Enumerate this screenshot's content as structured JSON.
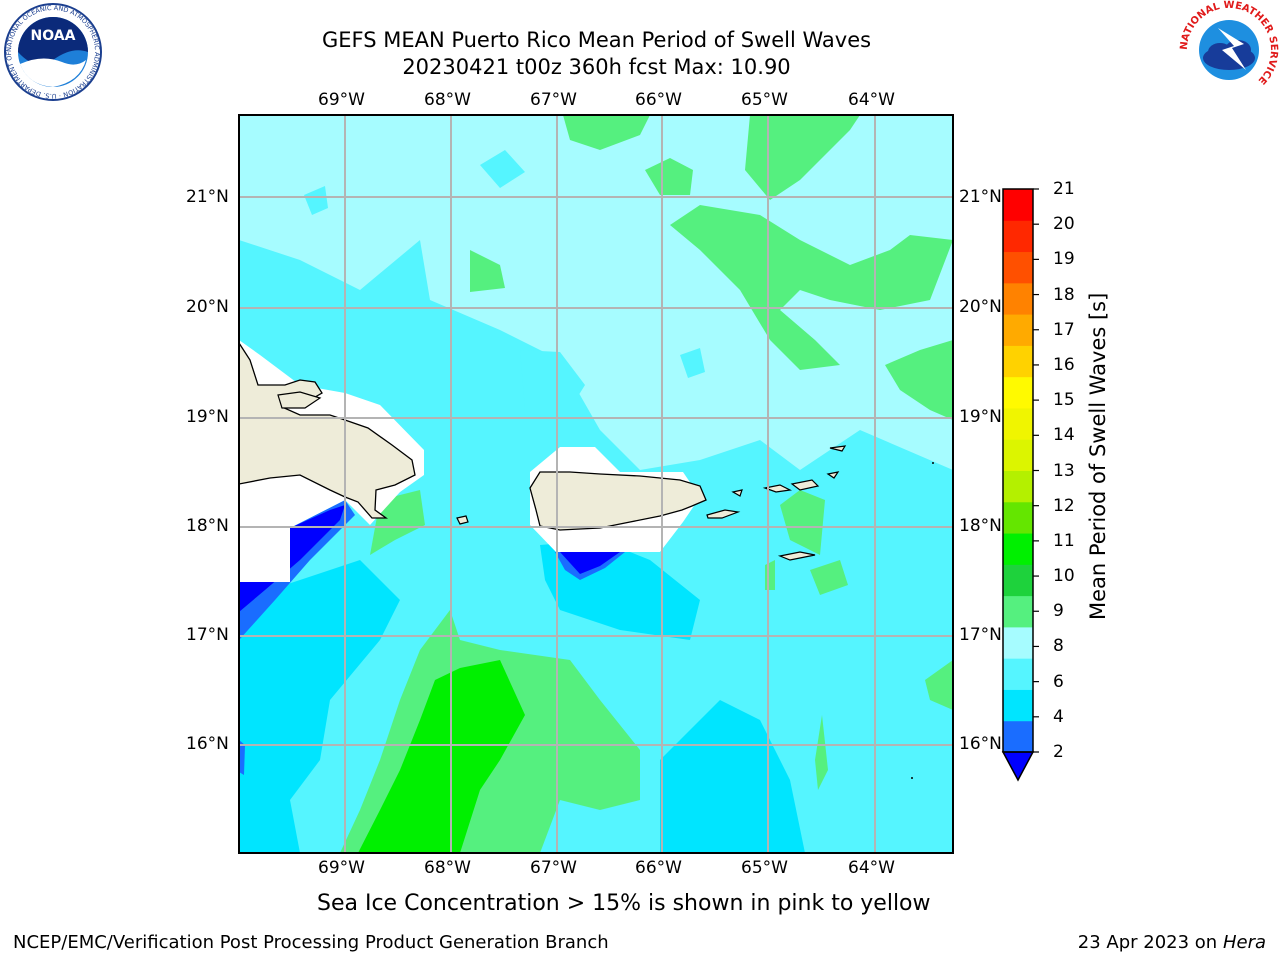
{
  "header": {
    "title_line1": "GEFS MEAN Puerto Rico Mean Period of Swell Waves",
    "title_line2": "20230421 t00z 360h fcst   Max: 10.90"
  },
  "logos": {
    "left_name": "NOAA",
    "left_ring_text": "NATIONAL OCEANIC AND ATMOSPHERIC ADMINISTRATION · U.S. DEPARTMENT OF COMMERCE",
    "right_ring_text": "NATIONAL WEATHER SERVICE"
  },
  "map": {
    "lon_labels": [
      "69°W",
      "68°W",
      "67°W",
      "66°W",
      "65°W",
      "64°W"
    ],
    "lat_labels": [
      "21°N",
      "20°N",
      "19°N",
      "18°N",
      "17°N",
      "16°N"
    ],
    "land_color": "#eeecd9",
    "grid_color": "#b4b4b4"
  },
  "colorbar": {
    "label": "Mean Period of Swell Waves [s]",
    "ticks": [
      "21",
      "20",
      "19",
      "18",
      "17",
      "16",
      "15",
      "14",
      "13",
      "12",
      "11",
      "10",
      "9",
      "8",
      "6",
      "4",
      "2"
    ],
    "colors_bottom_to_top": [
      "#1a6dff",
      "#00e5ff",
      "#55f5ff",
      "#a6fcff",
      "#55f07f",
      "#1ed23c",
      "#00f000",
      "#64e600",
      "#b4f000",
      "#dcf500",
      "#f0f500",
      "#fffa00",
      "#ffd200",
      "#ffaa00",
      "#ff8200",
      "#ff5000",
      "#ff2800",
      "#ff0000"
    ],
    "underflow_color": "#0000ff"
  },
  "note": "Sea Ice Concentration > 15% is shown in pink to yellow",
  "footer": {
    "left": "NCEP/EMC/Verification Post Processing Product Generation Branch",
    "right_prefix": "23 Apr 2023 on ",
    "right_italic": "Hera"
  }
}
